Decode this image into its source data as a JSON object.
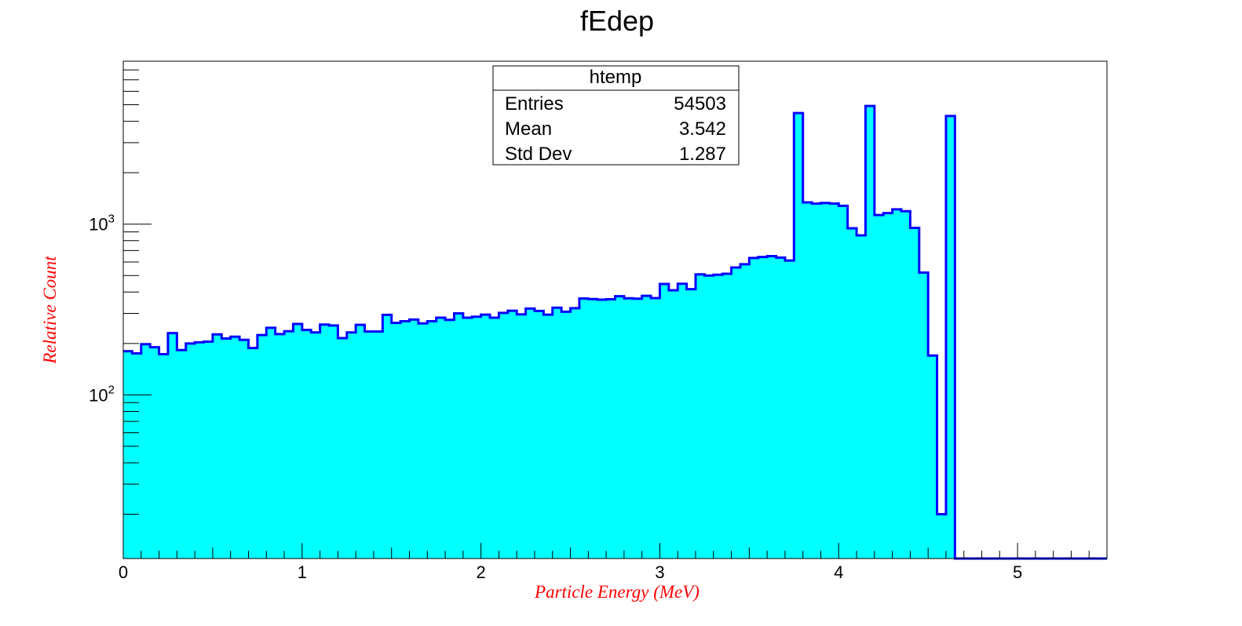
{
  "chart_data": {
    "type": "bar",
    "title": "fEdep",
    "xlabel": "Particle Energy (MeV)",
    "ylabel": "Relative Count",
    "label_color": "#ff0000",
    "fill_color": "#00ffff",
    "line_color": "#0000ff",
    "log_y": true,
    "grid": false,
    "xlim": [
      0,
      5.5
    ],
    "ylim": [
      11,
      9000
    ],
    "bin_width": 0.05,
    "x_ticks": [
      "0",
      "1",
      "2",
      "3",
      "4",
      "5"
    ],
    "y_ticks": [
      {
        "value": 100,
        "base": "10",
        "exp": "2"
      },
      {
        "value": 1000,
        "base": "10",
        "exp": "3"
      }
    ],
    "values": [
      180,
      175,
      198,
      190,
      173,
      230,
      183,
      200,
      203,
      205,
      226,
      214,
      219,
      210,
      188,
      224,
      247,
      227,
      236,
      260,
      240,
      232,
      258,
      255,
      215,
      232,
      257,
      235,
      235,
      294,
      264,
      270,
      276,
      262,
      270,
      283,
      275,
      300,
      283,
      287,
      295,
      283,
      302,
      311,
      296,
      320,
      310,
      295,
      324,
      307,
      322,
      367,
      364,
      361,
      363,
      378,
      368,
      366,
      380,
      369,
      446,
      410,
      447,
      416,
      508,
      500,
      505,
      512,
      557,
      582,
      633,
      642,
      649,
      637,
      612,
      4470,
      1340,
      1320,
      1330,
      1320,
      1280,
      945,
      860,
      4920,
      1130,
      1160,
      1220,
      1190,
      950,
      520,
      170,
      20,
      4300,
      0,
      0,
      0,
      0,
      0,
      0,
      0,
      0,
      0,
      0,
      0,
      0,
      0,
      0,
      0,
      0,
      0
    ]
  },
  "stats_box": {
    "title": "htemp",
    "rows": [
      {
        "label": "Entries",
        "value": "54503"
      },
      {
        "label": "Mean",
        "value": "3.542"
      },
      {
        "label": "Std Dev",
        "value": "1.287"
      }
    ]
  }
}
